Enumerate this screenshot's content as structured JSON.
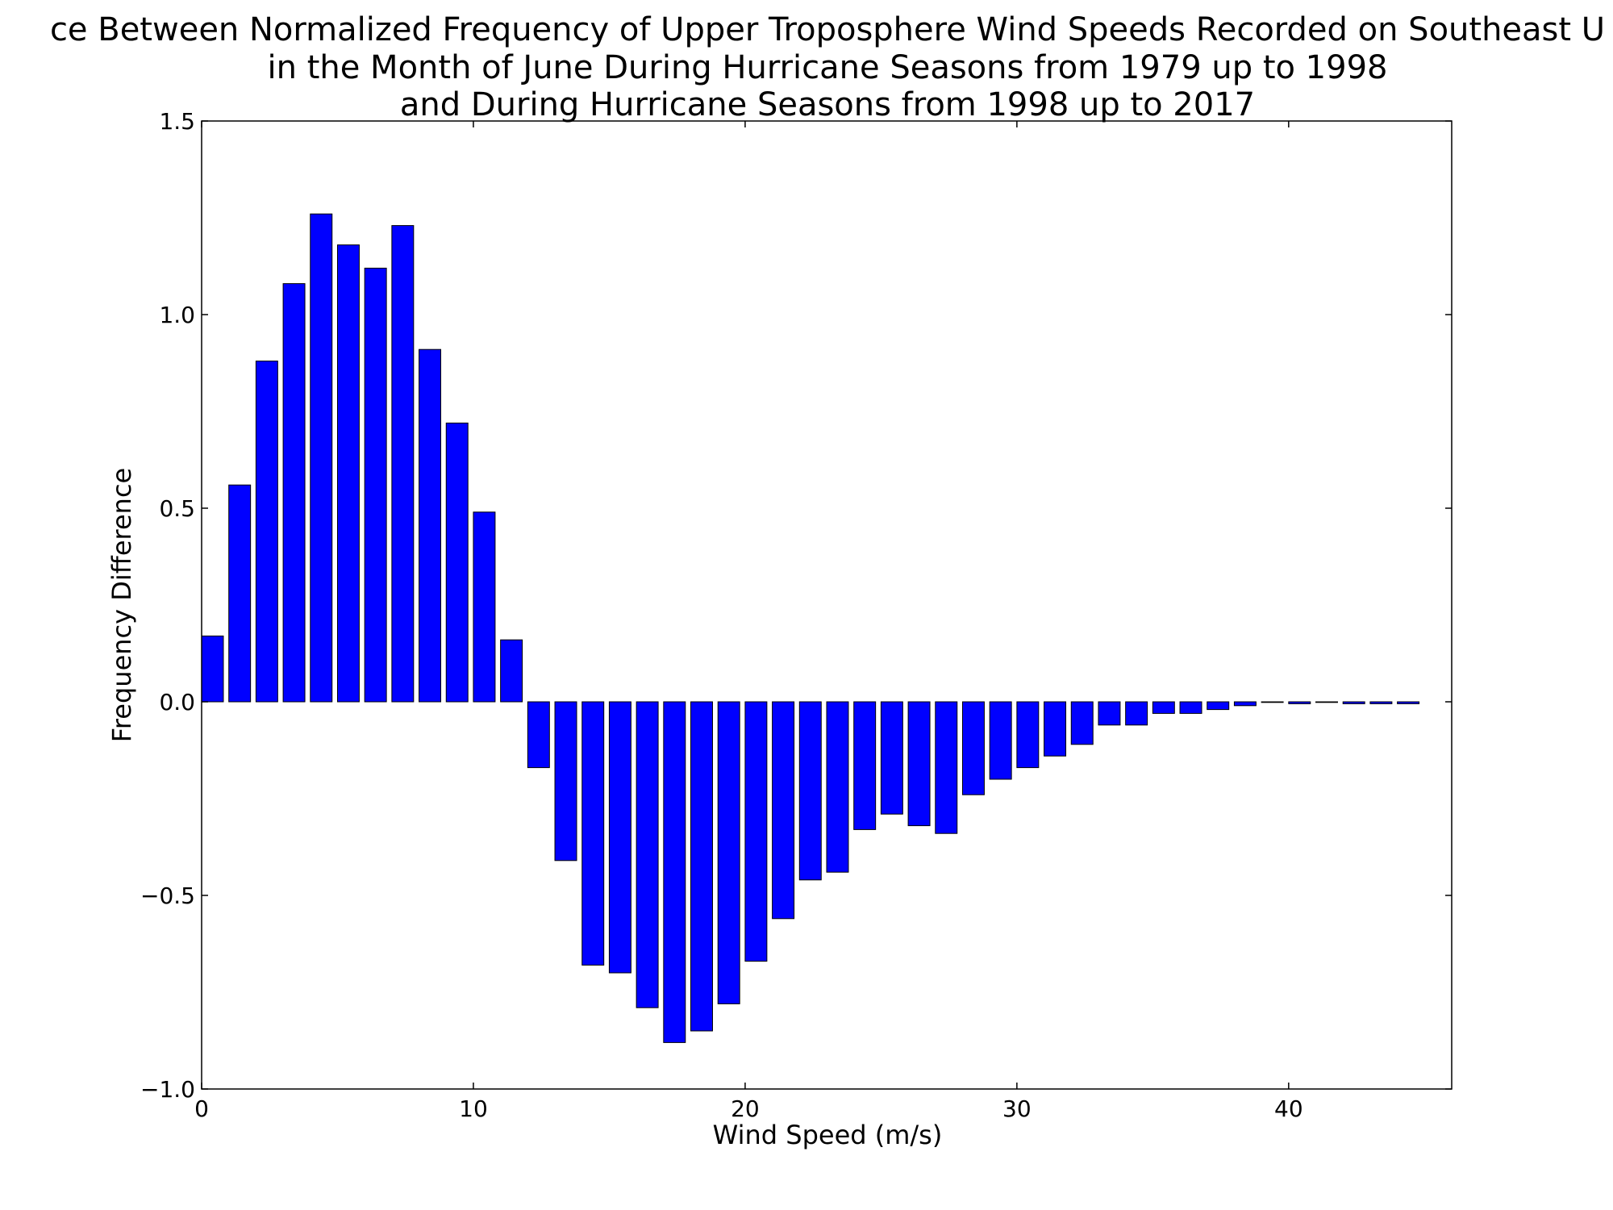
{
  "chart_data": {
    "type": "bar",
    "title_lines": [
      "ce Between Normalized Frequency of Upper Troposphere Wind Speeds Recorded on Southeast U",
      "in the Month of June During Hurricane Seasons from 1979 up to 1998",
      "and During Hurricane Seasons from 1998 up to 2017"
    ],
    "xlabel": "Wind Speed (m/s)",
    "ylabel": "Frequency Difference",
    "xlim": [
      0,
      46
    ],
    "ylim": [
      -1.0,
      1.5
    ],
    "xticks": [
      0,
      10,
      20,
      30,
      40
    ],
    "xtick_labels": [
      "0",
      "10",
      "20",
      "30",
      "40"
    ],
    "yticks": [
      -1.0,
      -0.5,
      0.0,
      0.5,
      1.0,
      1.5
    ],
    "ytick_labels": [
      "−1.0",
      "−0.5",
      "0.0",
      "0.5",
      "1.0",
      "1.5"
    ],
    "bar_width": 0.8,
    "bar_color": "#0000ff",
    "edge_color": "#000000",
    "grid": false,
    "x": [
      0,
      1,
      2,
      3,
      4,
      5,
      6,
      7,
      8,
      9,
      10,
      11,
      12,
      13,
      14,
      15,
      16,
      17,
      18,
      19,
      20,
      21,
      22,
      23,
      24,
      25,
      26,
      27,
      28,
      29,
      30,
      31,
      32,
      33,
      34,
      35,
      36,
      37,
      38,
      39,
      40,
      41,
      42,
      43,
      44
    ],
    "values": [
      0.17,
      0.56,
      0.88,
      1.08,
      1.26,
      1.18,
      1.12,
      1.23,
      0.91,
      0.72,
      0.49,
      0.16,
      -0.17,
      -0.41,
      -0.68,
      -0.7,
      -0.79,
      -0.88,
      -0.85,
      -0.78,
      -0.67,
      -0.56,
      -0.46,
      -0.44,
      -0.33,
      -0.29,
      -0.32,
      -0.34,
      -0.24,
      -0.2,
      -0.17,
      -0.14,
      -0.11,
      -0.06,
      -0.06,
      -0.03,
      -0.03,
      -0.02,
      -0.01,
      0.0,
      -0.005,
      0.0,
      -0.005,
      -0.005,
      -0.005
    ]
  }
}
